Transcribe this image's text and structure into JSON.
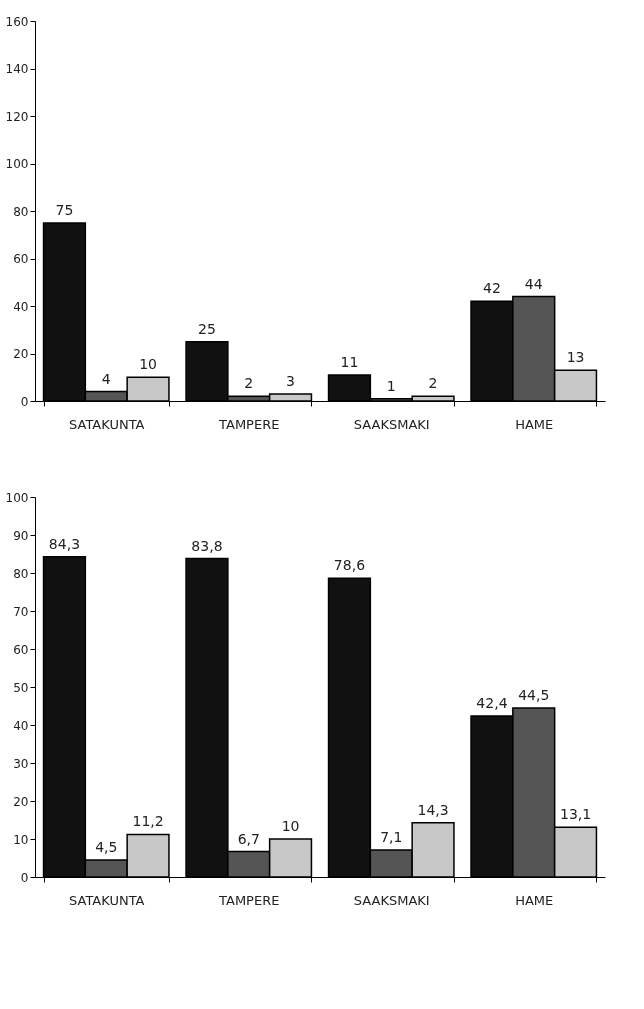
{
  "chart_data": [
    {
      "type": "bar",
      "categories": [
        "SATAKUNTA",
        "TAMPERE",
        "SAAKSMAKI",
        "HAME"
      ],
      "ylim": [
        0,
        160
      ],
      "yticks": [
        0,
        20,
        40,
        60,
        80,
        100,
        120,
        140,
        160
      ],
      "grid": false,
      "legend": false,
      "series": [
        {
          "color": "#111111",
          "values": [
            75,
            25,
            11,
            42
          ]
        },
        {
          "color": "#555555",
          "values": [
            4,
            2,
            1,
            44
          ]
        },
        {
          "color": "#c8c8c8",
          "values": [
            10,
            3,
            2,
            13
          ]
        }
      ],
      "data_labels": true
    },
    {
      "type": "bar",
      "categories": [
        "SATAKUNTA",
        "TAMPERE",
        "SAAKSMAKI",
        "HAME"
      ],
      "ylim": [
        0,
        100
      ],
      "yticks": [
        0,
        10,
        20,
        30,
        40,
        50,
        60,
        70,
        80,
        90,
        100
      ],
      "grid": false,
      "legend": false,
      "series": [
        {
          "color": "#111111",
          "values": [
            84.3,
            83.8,
            78.6,
            42.4
          ],
          "value_labels": [
            "84,3",
            "83,8",
            "78,6",
            "42,4"
          ]
        },
        {
          "color": "#555555",
          "values": [
            4.5,
            6.7,
            7.1,
            44.5
          ],
          "value_labels": [
            "4,5",
            "6,7",
            "7,1",
            "44,5"
          ]
        },
        {
          "color": "#c8c8c8",
          "values": [
            11.2,
            10,
            14.3,
            13.1
          ],
          "value_labels": [
            "11,2",
            "10",
            "14,3",
            "13,1"
          ]
        }
      ]
    }
  ]
}
